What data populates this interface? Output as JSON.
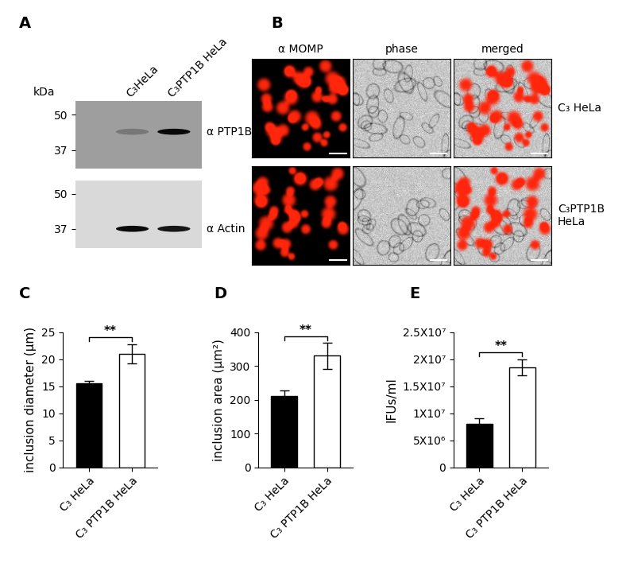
{
  "panels": {
    "A": {
      "letter": "A",
      "units": "kDa",
      "lanes": [
        "C₃HeLa",
        "C₃PTP1B HeLa"
      ],
      "blots": [
        {
          "label": "α PTP1B",
          "markers": [
            50,
            37
          ]
        },
        {
          "label": "α Actin",
          "markers": [
            50,
            37
          ]
        }
      ]
    },
    "B": {
      "letter": "B",
      "columns": [
        "α MOMP",
        "phase",
        "merged"
      ],
      "rows": [
        "C₃ HeLa",
        "C₃PTP1B\nHeLa"
      ]
    }
  },
  "chart_data": [
    {
      "letter": "C",
      "type": "bar",
      "categories": [
        "C₃ HeLa",
        "C₃ PTP1B HeLa"
      ],
      "values": [
        15.5,
        21.0
      ],
      "errors": [
        0.5,
        1.8
      ],
      "colors": [
        "#000000",
        "#ffffff"
      ],
      "ylabel": "inclusion diameter (µm)",
      "ylim": [
        0,
        25
      ],
      "yticks": [
        0,
        5,
        10,
        15,
        20,
        25
      ],
      "significance": "**"
    },
    {
      "letter": "D",
      "type": "bar",
      "categories": [
        "C₃ HeLa",
        "C₃ PTP1B HeLa"
      ],
      "values": [
        212,
        330
      ],
      "errors": [
        15,
        38
      ],
      "colors": [
        "#000000",
        "#ffffff"
      ],
      "ylabel": "inclusion area (µm²)",
      "ylim": [
        0,
        400
      ],
      "yticks": [
        0,
        100,
        200,
        300,
        400
      ],
      "significance": "**"
    },
    {
      "letter": "E",
      "type": "bar",
      "categories": [
        "C₃ HeLa",
        "C₃ PTP1B HeLa"
      ],
      "values": [
        8000000,
        18500000
      ],
      "errors": [
        1000000,
        1500000
      ],
      "colors": [
        "#000000",
        "#ffffff"
      ],
      "ylabel": "IFUs/ml",
      "ylim": [
        0,
        25000000
      ],
      "yticks": [
        0,
        {
          "value": 5000000,
          "label": "5X10⁶"
        },
        {
          "value": 10000000,
          "label": "1X10⁷"
        },
        {
          "value": 15000000,
          "label": "1.5X10⁷"
        },
        {
          "value": 20000000,
          "label": "2X10⁷"
        },
        {
          "value": 25000000,
          "label": "2.5X10⁷"
        }
      ],
      "significance": "**"
    }
  ]
}
